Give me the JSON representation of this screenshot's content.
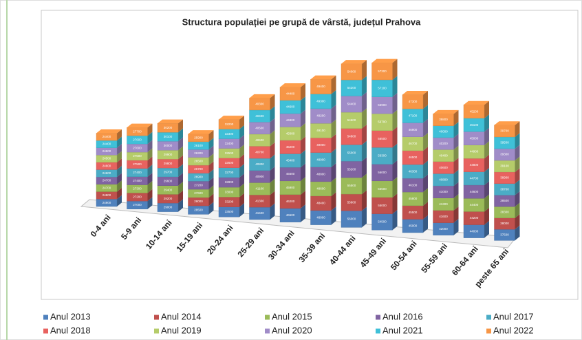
{
  "chart_data": {
    "type": "bar3d_stacked",
    "title": "Structura populației pe grupă de vârstă, județul Prahova",
    "categories": [
      "0-4 ani",
      "5-9 ani",
      "10-14 ani",
      "15-19 ani",
      "20-24 ani",
      "25-29 ani",
      "30-34 ani",
      "35-39 ani",
      "40-44 ani",
      "45-49 ani",
      "50-54 ani",
      "55-59 ani",
      "60-64 ani",
      "peste 65 ani"
    ],
    "series": [
      {
        "name": "Anul 2013",
        "color": "#4f81bd",
        "values": [
          24900,
          27000,
          29000,
          28500,
          33500,
          41500,
          46500,
          48000,
          56000,
          54500,
          45000,
          42000,
          44000,
          37500
        ]
      },
      {
        "name": "Anul 2014",
        "color": "#c0504d",
        "values": [
          24800,
          27200,
          29200,
          28000,
          33200,
          41300,
          46200,
          48400,
          55800,
          55000,
          45500,
          41600,
          44200,
          38000
        ]
      },
      {
        "name": "Anul 2015",
        "color": "#9bbb59",
        "values": [
          24700,
          27300,
          29400,
          27600,
          33000,
          41100,
          45900,
          48600,
          55500,
          55500,
          45800,
          41300,
          44400,
          38300
        ]
      },
      {
        "name": "Anul 2016",
        "color": "#8064a2",
        "values": [
          24700,
          27400,
          29600,
          27200,
          32800,
          40900,
          45600,
          48800,
          55200,
          56000,
          46100,
          41000,
          44600,
          38500
        ]
      },
      {
        "name": "Anul 2017",
        "color": "#4bacc6",
        "values": [
          24600,
          27400,
          29700,
          26900,
          32700,
          40800,
          45400,
          48900,
          55000,
          56300,
          46300,
          40800,
          44700,
          38700
        ]
      },
      {
        "name": "Anul 2018",
        "color": "#e8625f",
        "values": [
          24600,
          27500,
          29800,
          26700,
          32600,
          40700,
          45200,
          49000,
          54800,
          56500,
          46500,
          40600,
          44800,
          38900
        ]
      },
      {
        "name": "Anul 2019",
        "color": "#b5cc6a",
        "values": [
          24500,
          27500,
          29900,
          26500,
          32500,
          40600,
          45000,
          49100,
          54600,
          56700,
          46700,
          40400,
          44900,
          39100
        ]
      },
      {
        "name": "Anul 2020",
        "color": "#a08cc8",
        "values": [
          24500,
          27600,
          30000,
          26300,
          32400,
          40500,
          44800,
          49200,
          54400,
          56900,
          46900,
          40200,
          45000,
          39300
        ]
      },
      {
        "name": "Anul 2021",
        "color": "#3fc0d8",
        "values": [
          24400,
          27600,
          30100,
          26100,
          32300,
          40400,
          44600,
          49300,
          54200,
          57100,
          47100,
          40000,
          45100,
          39500
        ]
      },
      {
        "name": "Anul 2022",
        "color": "#f79646",
        "values": [
          24400,
          27700,
          30200,
          25900,
          32200,
          40300,
          44400,
          49400,
          54000,
          57300,
          47300,
          39800,
          45200,
          39700
        ]
      }
    ]
  }
}
